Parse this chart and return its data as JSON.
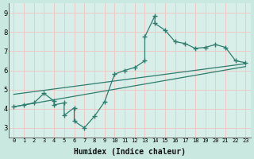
{
  "xlabel": "Humidex (Indice chaleur)",
  "background_color": "#c8e8e0",
  "plot_bg_color": "#d8eee8",
  "line_color": "#2e7d6e",
  "grid_color": "#f0c8c8",
  "line_data": [
    [
      0,
      4.1
    ],
    [
      1,
      4.2
    ],
    [
      2,
      4.3
    ],
    [
      3,
      4.8
    ],
    [
      4,
      4.4
    ],
    [
      4,
      4.2
    ],
    [
      5,
      4.3
    ],
    [
      5,
      3.65
    ],
    [
      6,
      4.05
    ],
    [
      6,
      3.35
    ],
    [
      7,
      3.0
    ],
    [
      8,
      3.6
    ],
    [
      9,
      4.35
    ],
    [
      10,
      5.8
    ],
    [
      11,
      6.0
    ],
    [
      12,
      6.15
    ],
    [
      13,
      6.5
    ],
    [
      13,
      7.75
    ],
    [
      14,
      8.85
    ],
    [
      14,
      8.45
    ],
    [
      15,
      8.1
    ],
    [
      16,
      7.5
    ],
    [
      17,
      7.4
    ],
    [
      18,
      7.15
    ],
    [
      19,
      7.2
    ],
    [
      20,
      7.35
    ],
    [
      21,
      7.2
    ],
    [
      22,
      6.5
    ],
    [
      23,
      6.4
    ]
  ],
  "reg_line": [
    [
      0,
      4.1
    ],
    [
      23,
      6.2
    ]
  ],
  "reg_line2": [
    [
      0,
      4.75
    ],
    [
      23,
      6.35
    ]
  ],
  "xlim": [
    -0.5,
    23.5
  ],
  "ylim": [
    2.5,
    9.5
  ],
  "yticks": [
    3,
    4,
    5,
    6,
    7,
    8,
    9
  ],
  "xtick_labels": [
    "0",
    "1",
    "2",
    "3",
    "4",
    "5",
    "6",
    "7",
    "8",
    "9",
    "10",
    "11",
    "12",
    "13",
    "14",
    "15",
    "16",
    "17",
    "18",
    "19",
    "20",
    "21",
    "22",
    "23"
  ],
  "marker_size": 4,
  "line_width": 0.9
}
